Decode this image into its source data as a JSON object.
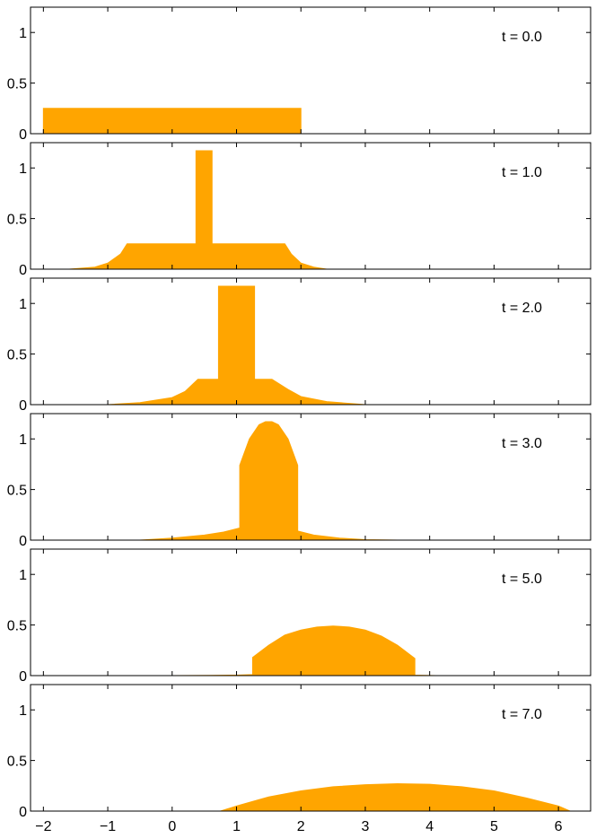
{
  "chart_data": [
    {
      "type": "area",
      "label": "t = 0.0",
      "xlim": [
        -2.2,
        6.5
      ],
      "ylim": [
        0,
        1.25
      ],
      "x": [
        -2.0,
        -2.0,
        2.0,
        2.0
      ],
      "y": [
        0,
        0.25,
        0.25,
        0
      ]
    },
    {
      "type": "area",
      "label": "t = 1.0",
      "xlim": [
        -2.2,
        6.5
      ],
      "ylim": [
        0,
        1.25
      ],
      "x": [
        -1.6,
        -1.2,
        -1.0,
        -0.8,
        -0.7,
        0.37,
        0.37,
        0.62,
        0.62,
        1.75,
        1.85,
        2.0,
        2.2,
        2.4
      ],
      "y": [
        0,
        0.02,
        0.06,
        0.15,
        0.25,
        0.25,
        1.17,
        1.17,
        0.25,
        0.25,
        0.15,
        0.06,
        0.02,
        0
      ]
    },
    {
      "type": "area",
      "label": "t = 2.0",
      "xlim": [
        -2.2,
        6.5
      ],
      "ylim": [
        0,
        1.25
      ],
      "x": [
        -1.0,
        -0.5,
        0.0,
        0.2,
        0.4,
        0.72,
        0.72,
        1.28,
        1.28,
        1.55,
        1.8,
        2.0,
        2.4,
        3.0
      ],
      "y": [
        0,
        0.02,
        0.07,
        0.13,
        0.25,
        0.25,
        1.17,
        1.17,
        0.25,
        0.25,
        0.15,
        0.08,
        0.03,
        0
      ],
      "note": ""
    },
    {
      "type": "area",
      "label": "t = 3.0",
      "xlim": [
        -2.2,
        6.5
      ],
      "ylim": [
        0,
        1.25
      ],
      "x": [
        -0.5,
        0.0,
        0.5,
        0.8,
        1.05,
        1.05,
        1.2,
        1.35,
        1.45,
        1.55,
        1.65,
        1.8,
        1.95,
        1.95,
        2.2,
        2.6,
        3.0,
        3.5
      ],
      "y": [
        0,
        0.02,
        0.05,
        0.08,
        0.12,
        0.74,
        1.0,
        1.14,
        1.17,
        1.17,
        1.14,
        1.0,
        0.74,
        0.09,
        0.05,
        0.02,
        0.005,
        0
      ]
    },
    {
      "type": "area",
      "label": "t = 5.0",
      "xlim": [
        -2.2,
        6.5
      ],
      "ylim": [
        0,
        1.25
      ],
      "x": [
        0.0,
        0.6,
        1.0,
        1.25,
        1.25,
        1.5,
        1.75,
        2.0,
        2.25,
        2.5,
        2.75,
        3.0,
        3.25,
        3.5,
        3.77,
        3.77,
        4.1
      ],
      "y": [
        0,
        0.002,
        0.005,
        0.01,
        0.18,
        0.3,
        0.4,
        0.45,
        0.48,
        0.49,
        0.48,
        0.45,
        0.39,
        0.3,
        0.17,
        0.005,
        0
      ]
    },
    {
      "type": "area",
      "label": "t = 7.0",
      "xlim": [
        -2.2,
        6.5
      ],
      "ylim": [
        0,
        1.25
      ],
      "x": [
        0.75,
        1.0,
        1.5,
        2.0,
        2.5,
        3.0,
        3.5,
        4.0,
        4.5,
        5.0,
        5.5,
        6.0,
        6.18
      ],
      "y": [
        0,
        0.05,
        0.14,
        0.2,
        0.24,
        0.26,
        0.27,
        0.265,
        0.24,
        0.2,
        0.13,
        0.05,
        0
      ]
    }
  ],
  "axes": {
    "x_ticks": [
      -2,
      -1,
      0,
      1,
      2,
      3,
      4,
      5,
      6
    ],
    "x_tick_labels": [
      "−2",
      "−1",
      "0",
      "1",
      "2",
      "3",
      "4",
      "5",
      "6"
    ],
    "y_ticks": [
      0,
      0.5,
      1
    ],
    "y_tick_labels": [
      "0",
      "0.5",
      "1"
    ]
  },
  "style": {
    "fill_color": "#FFA500",
    "axis_color": "#000000"
  }
}
